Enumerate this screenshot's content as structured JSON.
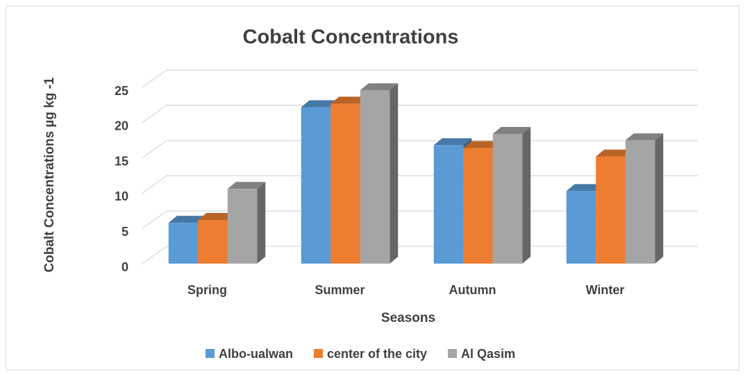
{
  "chart_data": {
    "type": "bar3d",
    "title": "Cobalt Concentrations",
    "x_label": "Seasons",
    "y_label": "Cobalt Concentrations µg kg -1",
    "categories": [
      "Spring",
      "Summer",
      "Autumn",
      "Winter"
    ],
    "series": [
      {
        "name": "Albo-ualwan",
        "color": "#5b9bd5",
        "values": [
          5.8,
          22.2,
          16.8,
          10.3
        ]
      },
      {
        "name": "center of the city",
        "color": "#ed7d31",
        "values": [
          6.2,
          22.7,
          16.4,
          15.2
        ]
      },
      {
        "name": "Al Qasim",
        "color": "#a5a5a5",
        "values": [
          10.6,
          24.6,
          18.4,
          17.5
        ]
      }
    ],
    "ylim": [
      0,
      25
    ],
    "yticks": [
      0,
      5,
      10,
      15,
      20,
      25
    ],
    "grid": true,
    "legend": "bottom"
  }
}
